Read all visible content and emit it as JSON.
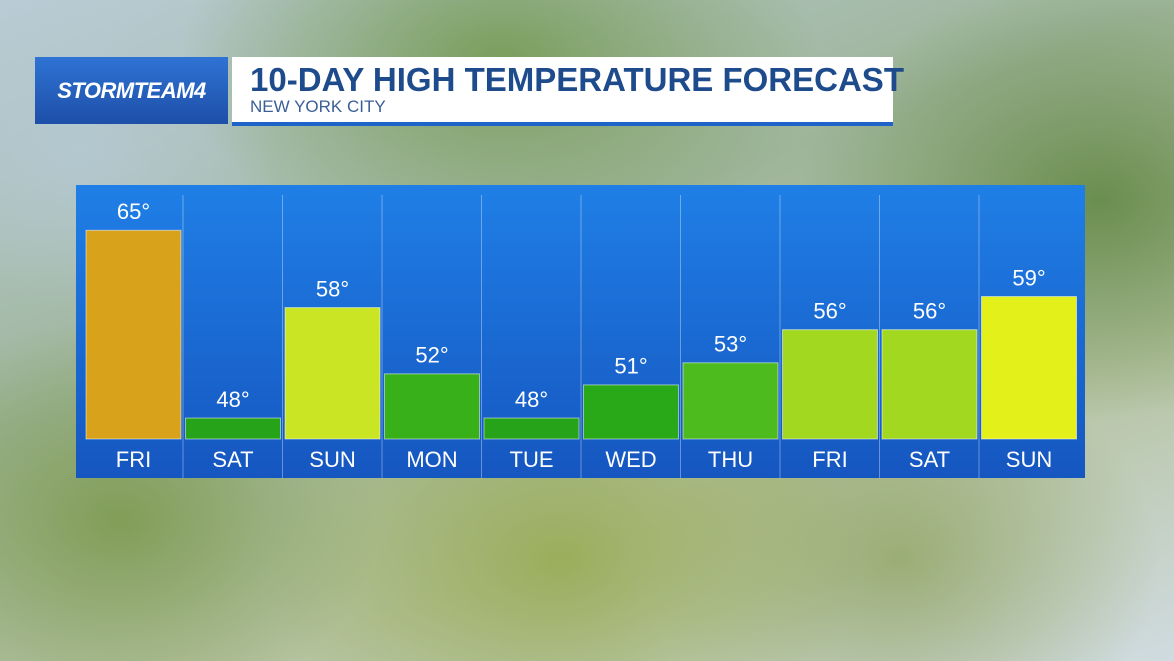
{
  "header": {
    "logo": "STORMTEAM4"
  },
  "chart_data": {
    "type": "bar",
    "title": "10-DAY HIGH TEMPERATURE FORECAST",
    "subtitle": "NEW YORK CITY",
    "categories": [
      "FRI",
      "SAT",
      "SUN",
      "MON",
      "TUE",
      "WED",
      "THU",
      "FRI",
      "SAT",
      "SUN"
    ],
    "values": [
      65,
      48,
      58,
      52,
      48,
      51,
      53,
      56,
      56,
      59
    ],
    "value_labels": [
      "65°",
      "48°",
      "58°",
      "52°",
      "48°",
      "51°",
      "53°",
      "56°",
      "56°",
      "59°"
    ],
    "colors": [
      "#d9a21b",
      "#27a319",
      "#c9e523",
      "#38b01a",
      "#27a319",
      "#2aa918",
      "#4dbb1e",
      "#a2d920",
      "#a2d920",
      "#e3f01a"
    ],
    "ylim": [
      46.1,
      69.1
    ]
  }
}
